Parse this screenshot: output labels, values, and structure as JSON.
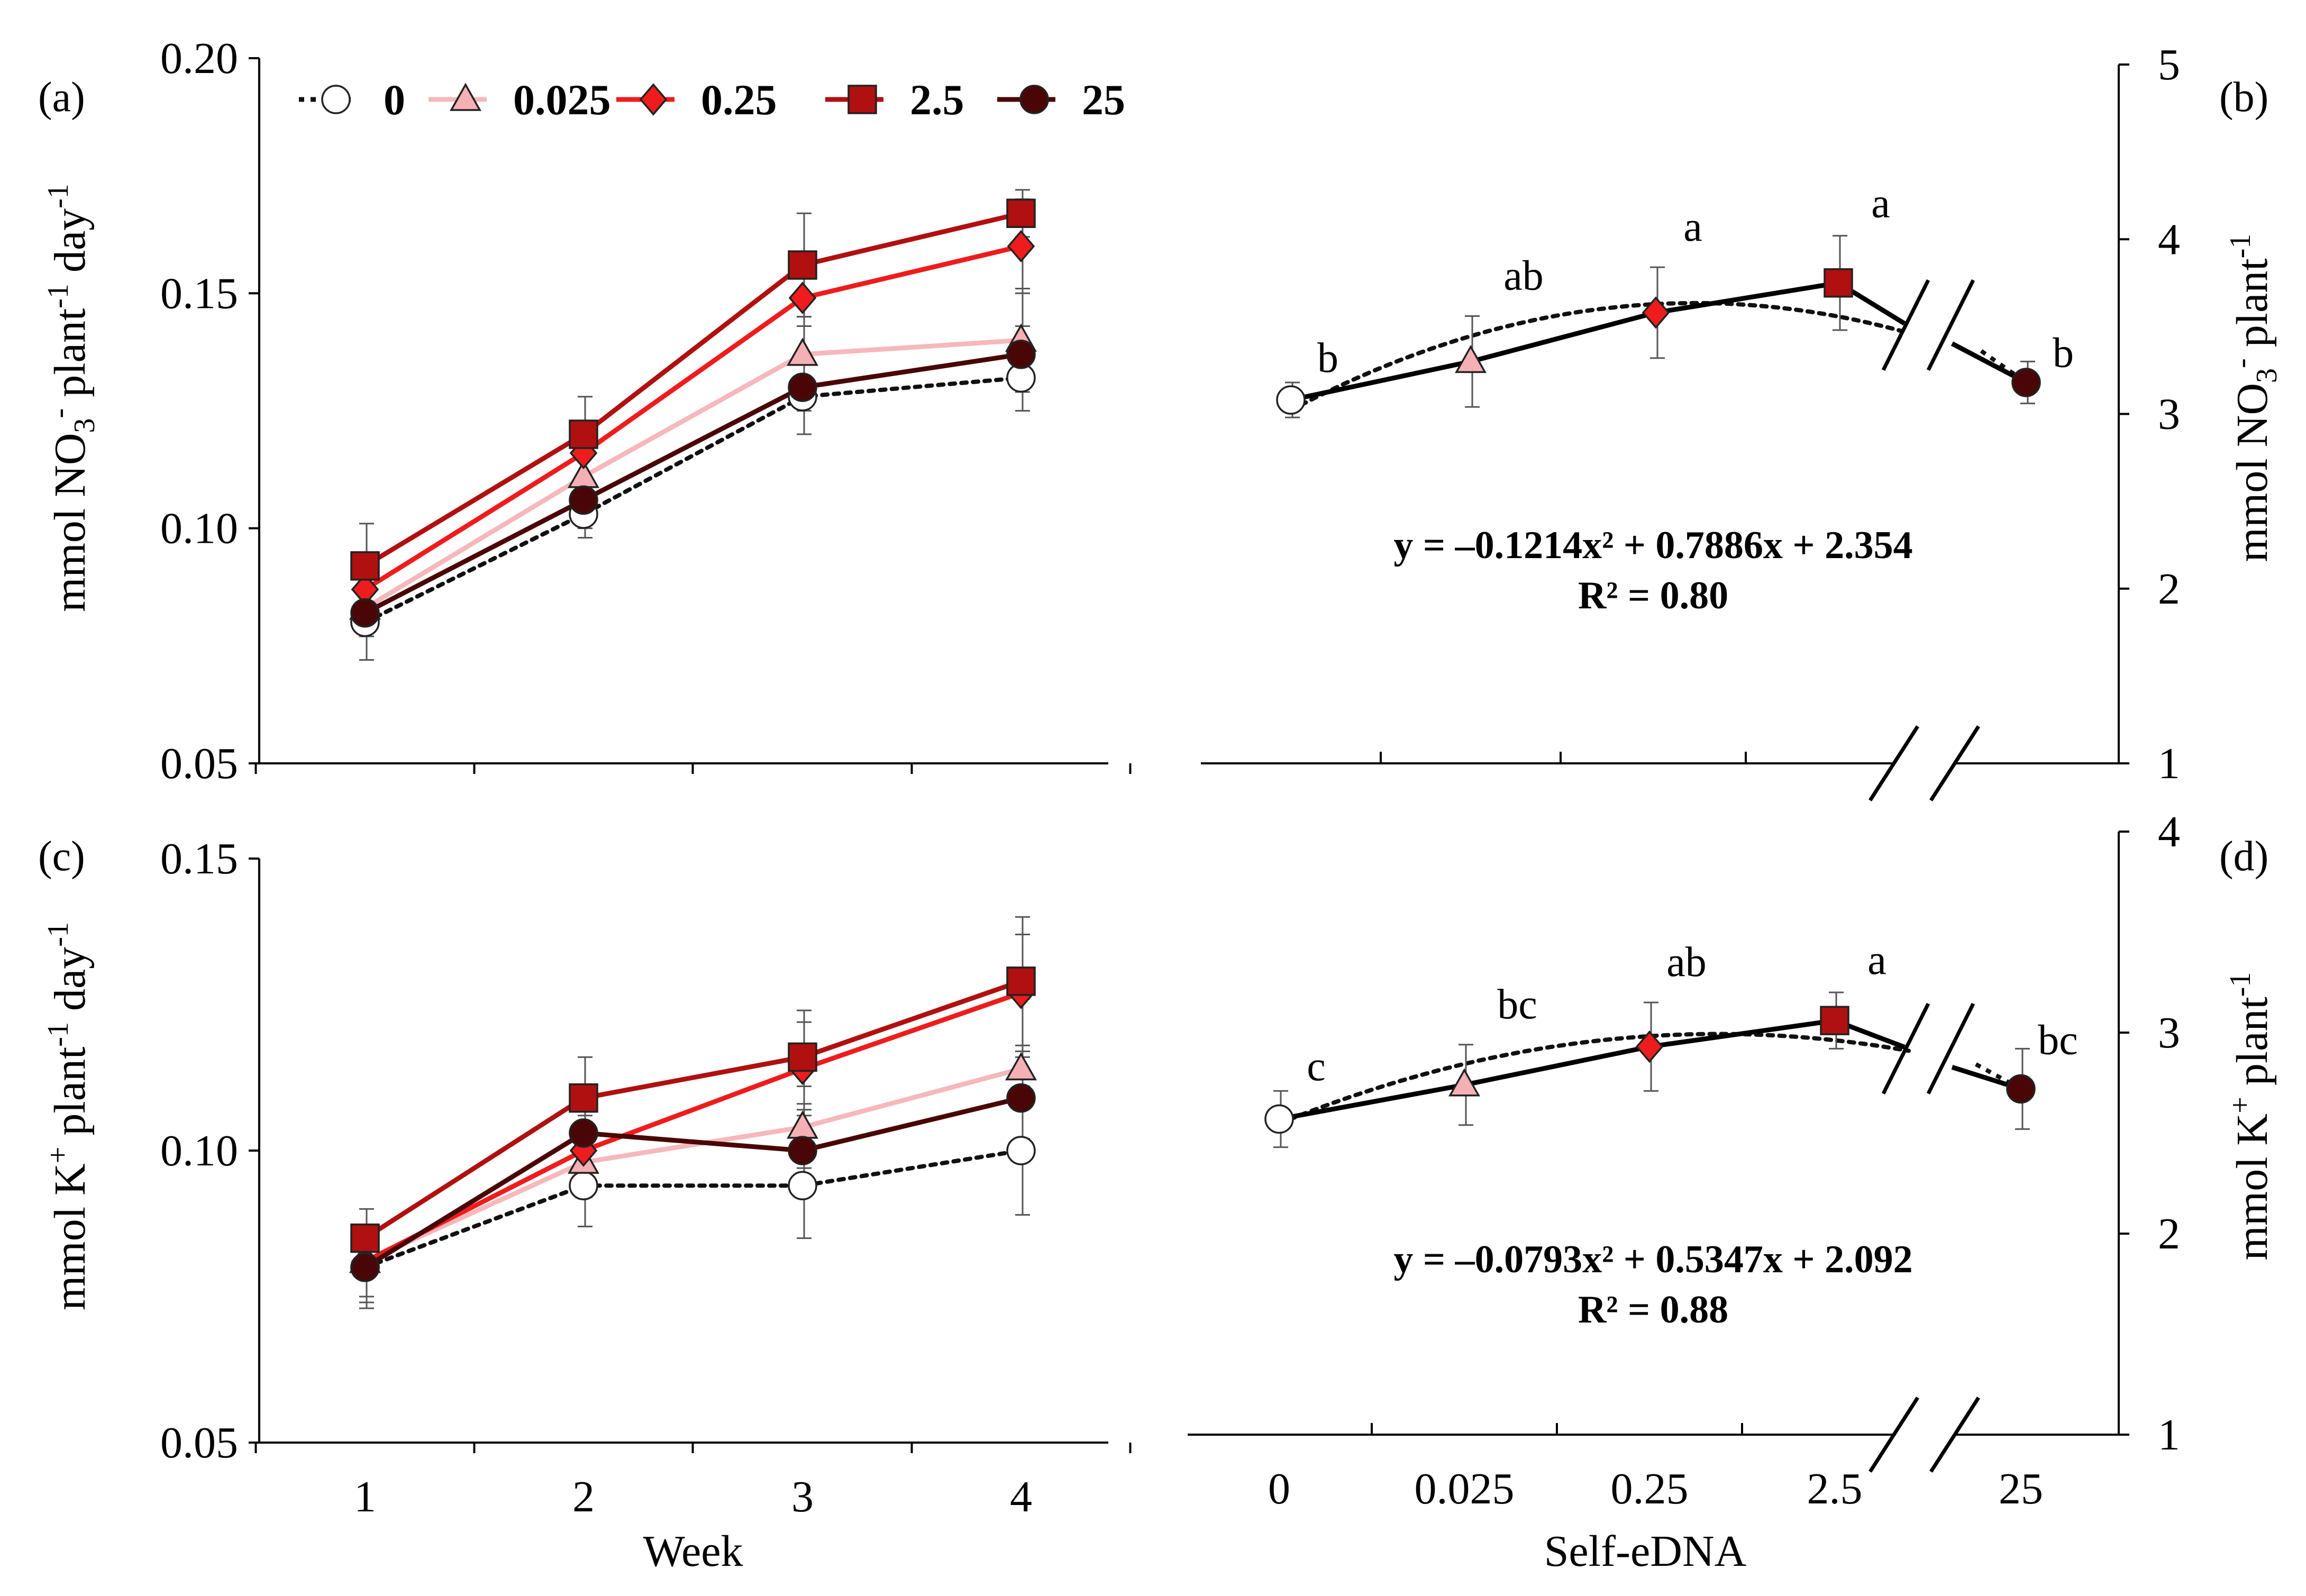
{
  "panels": {
    "a": "(a)",
    "b": "(b)",
    "c": "(c)",
    "d": "(d)"
  },
  "colors": {
    "0": "#ffffff",
    "0.025": "#f4b0b4",
    "0.25": "#ee1c1c",
    "2.5": "#b01010",
    "25": "#4a0606",
    "line_0": "#111111",
    "line_0.025": "#f6b8bb",
    "line_0.25": "#ee1c1c",
    "line_2.5": "#b01010",
    "line_25": "#4a0606",
    "fit": "#111111"
  },
  "legend": {
    "entries": [
      {
        "label": "0",
        "key": "0",
        "marker": "circle",
        "dashed": true
      },
      {
        "label": "0.025",
        "key": "0.025",
        "marker": "triangle",
        "dashed": false
      },
      {
        "label": "0.25",
        "key": "0.25",
        "marker": "diamond",
        "dashed": false
      },
      {
        "label": "2.5",
        "key": "2.5",
        "marker": "square",
        "dashed": false
      },
      {
        "label": "25",
        "key": "25",
        "marker": "circle",
        "dashed": false
      }
    ]
  },
  "chart_data": [
    {
      "id": "a",
      "type": "line",
      "ylabel": "mmol NO3- plant-1 day-1",
      "xlabel": "",
      "categories": [
        "1",
        "2",
        "3",
        "4"
      ],
      "ylim": [
        0.05,
        0.2
      ],
      "yticks": [
        "0.05",
        "0.10",
        "0.15",
        "0.20"
      ],
      "series": [
        {
          "name": "0",
          "values": [
            0.08,
            0.103,
            0.128,
            0.132
          ],
          "err": [
            0.008,
            0.005,
            0.008,
            0.007
          ]
        },
        {
          "name": "0.025",
          "values": [
            0.083,
            0.111,
            0.137,
            0.14
          ],
          "err": [
            0.006,
            0.006,
            0.008,
            0.011
          ]
        },
        {
          "name": "0.25",
          "values": [
            0.087,
            0.116,
            0.149,
            0.16
          ],
          "err": [
            0.006,
            0.006,
            0.006,
            0.01
          ]
        },
        {
          "name": "2.5",
          "values": [
            0.092,
            0.12,
            0.156,
            0.167
          ],
          "err": [
            0.009,
            0.008,
            0.011,
            0.005
          ]
        },
        {
          "name": "25",
          "values": [
            0.082,
            0.106,
            0.13,
            0.137
          ],
          "err": [
            0.005,
            0.006,
            0.005,
            0.006
          ]
        }
      ]
    },
    {
      "id": "b",
      "type": "line",
      "ylabel": "mmol NO3- plant-1",
      "xlabel": "",
      "categories": [
        "0",
        "0.025",
        "0.25",
        "2.5",
        "25"
      ],
      "ylim": [
        1,
        5
      ],
      "yticks": [
        "1",
        "2",
        "3",
        "4",
        "5"
      ],
      "values": [
        3.08,
        3.3,
        3.58,
        3.75,
        3.18
      ],
      "err": [
        0.1,
        0.26,
        0.26,
        0.27,
        0.12
      ],
      "letters": [
        "b",
        "ab",
        "a",
        "a",
        "b"
      ],
      "equation": "y =  –0.1214x² + 0.7886x + 2.354",
      "r2": "R² = 0.80",
      "fit": [
        2.354,
        0.7886,
        -0.1214
      ]
    },
    {
      "id": "c",
      "type": "line",
      "ylabel": "mmol K+ plant-1 day-1",
      "xlabel": "Week",
      "categories": [
        "1",
        "2",
        "3",
        "4"
      ],
      "ylim": [
        0.05,
        0.15
      ],
      "yticks": [
        "0.05",
        "0.10",
        "0.15"
      ],
      "series": [
        {
          "name": "0",
          "values": [
            0.08,
            0.094,
            0.094,
            0.1
          ],
          "err": [
            0.007,
            0.007,
            0.009,
            0.011
          ]
        },
        {
          "name": "0.025",
          "values": [
            0.081,
            0.098,
            0.104,
            0.114
          ],
          "err": [
            0.006,
            0.006,
            0.007,
            0.012
          ]
        },
        {
          "name": "0.25",
          "values": [
            0.081,
            0.1,
            0.114,
            0.127
          ],
          "err": [
            0.006,
            0.006,
            0.008,
            0.01
          ]
        },
        {
          "name": "2.5",
          "values": [
            0.085,
            0.109,
            0.116,
            0.129
          ],
          "err": [
            0.005,
            0.007,
            0.008,
            0.011
          ]
        },
        {
          "name": "25",
          "values": [
            0.08,
            0.103,
            0.1,
            0.109
          ],
          "err": [
            0.006,
            0.006,
            0.007,
            0.007
          ]
        }
      ]
    },
    {
      "id": "d",
      "type": "line",
      "ylabel": "mmol K+ plant-1",
      "xlabel": "Self-eDNA",
      "categories": [
        "0",
        "0.025",
        "0.25",
        "2.5",
        "25"
      ],
      "ylim": [
        1,
        4
      ],
      "yticks": [
        "1",
        "2",
        "3",
        "4"
      ],
      "values": [
        2.57,
        2.74,
        2.93,
        3.06,
        2.72
      ],
      "err": [
        0.14,
        0.2,
        0.22,
        0.14,
        0.2
      ],
      "letters": [
        "c",
        "bc",
        "ab",
        "a",
        "bc"
      ],
      "equation": "y = –0.0793x² + 0.5347x + 2.092",
      "r2": "R² = 0.88",
      "fit": [
        2.092,
        0.5347,
        -0.0793
      ]
    }
  ]
}
